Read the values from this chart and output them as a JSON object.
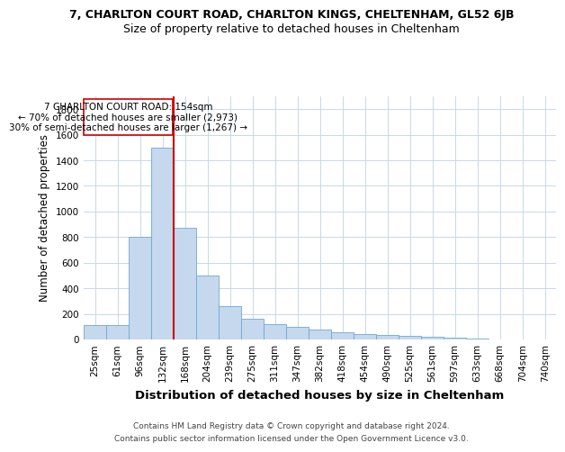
{
  "title_line1": "7, CHARLTON COURT ROAD, CHARLTON KINGS, CHELTENHAM, GL52 6JB",
  "title_line2": "Size of property relative to detached houses in Cheltenham",
  "xlabel": "Distribution of detached houses by size in Cheltenham",
  "ylabel": "Number of detached properties",
  "footer_line1": "Contains HM Land Registry data © Crown copyright and database right 2024.",
  "footer_line2": "Contains public sector information licensed under the Open Government Licence v3.0.",
  "categories": [
    "25sqm",
    "61sqm",
    "96sqm",
    "132sqm",
    "168sqm",
    "204sqm",
    "239sqm",
    "275sqm",
    "311sqm",
    "347sqm",
    "382sqm",
    "418sqm",
    "454sqm",
    "490sqm",
    "525sqm",
    "561sqm",
    "597sqm",
    "633sqm",
    "668sqm",
    "704sqm",
    "740sqm"
  ],
  "values": [
    110,
    110,
    800,
    1500,
    870,
    500,
    260,
    160,
    120,
    100,
    75,
    55,
    45,
    35,
    25,
    18,
    12,
    8,
    3,
    1,
    0
  ],
  "bar_color": "#c5d8ee",
  "bar_edgecolor": "#6aaad4",
  "red_line_index": 4,
  "red_line_color": "#cc0000",
  "annotation_line1": "7 CHARLTON COURT ROAD: 154sqm",
  "annotation_line2": "← 70% of detached houses are smaller (2,973)",
  "annotation_line3": "30% of semi-detached houses are larger (1,267) →",
  "annotation_box_color": "#ffffff",
  "annotation_box_edgecolor": "#cc0000",
  "ylim": [
    0,
    1900
  ],
  "yticks": [
    0,
    200,
    400,
    600,
    800,
    1000,
    1200,
    1400,
    1600,
    1800
  ],
  "bg_color": "#ffffff",
  "grid_color": "#c8d8e8",
  "title1_fontsize": 9,
  "title2_fontsize": 9,
  "xlabel_fontsize": 9.5,
  "ylabel_fontsize": 8.5,
  "tick_fontsize": 7.5,
  "annotation_fontsize": 7.5,
  "footer_fontsize": 6.5
}
